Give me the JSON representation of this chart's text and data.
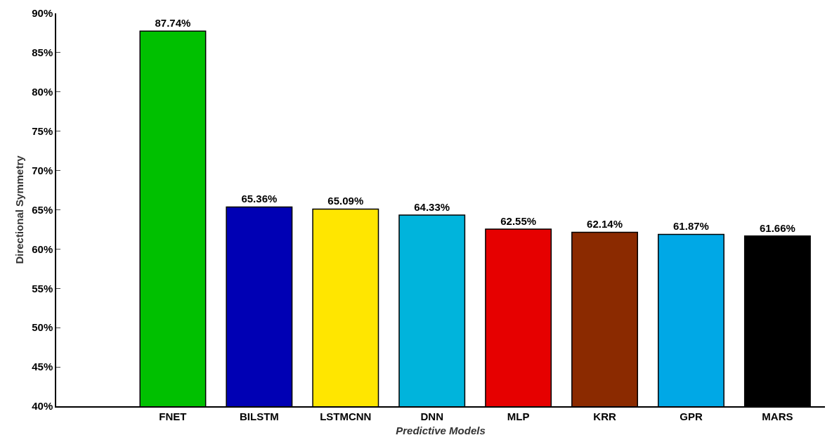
{
  "chart_data": {
    "type": "bar",
    "xlabel": "Predictive Models",
    "ylabel": "Directional Symmetry",
    "categories": [
      "FNET",
      "BILSTM",
      "LSTMCNN",
      "DNN",
      "MLP",
      "KRR",
      "GPR",
      "MARS"
    ],
    "values": [
      87.74,
      65.36,
      65.09,
      64.33,
      62.55,
      62.14,
      61.87,
      61.66
    ],
    "colors": [
      "#00c000",
      "#0000b4",
      "#ffe600",
      "#00b4dc",
      "#e60000",
      "#8b2a00",
      "#00a8e6",
      "#000000"
    ],
    "value_labels": [
      "87.74%",
      "65.36%",
      "65.09%",
      "64.33%",
      "62.55%",
      "62.14%",
      "61.87%",
      "61.66%"
    ],
    "ylim": [
      40,
      90
    ],
    "yticks": [
      {
        "value": 40,
        "label": "40%"
      },
      {
        "value": 45,
        "label": "45%"
      },
      {
        "value": 50,
        "label": "50%"
      },
      {
        "value": 55,
        "label": "55%"
      },
      {
        "value": 60,
        "label": "60%"
      },
      {
        "value": 65,
        "label": "65%"
      },
      {
        "value": 70,
        "label": "70%"
      },
      {
        "value": 75,
        "label": "75%"
      },
      {
        "value": 80,
        "label": "80%"
      },
      {
        "value": 85,
        "label": "85%"
      },
      {
        "value": 90,
        "label": "90%"
      }
    ]
  }
}
